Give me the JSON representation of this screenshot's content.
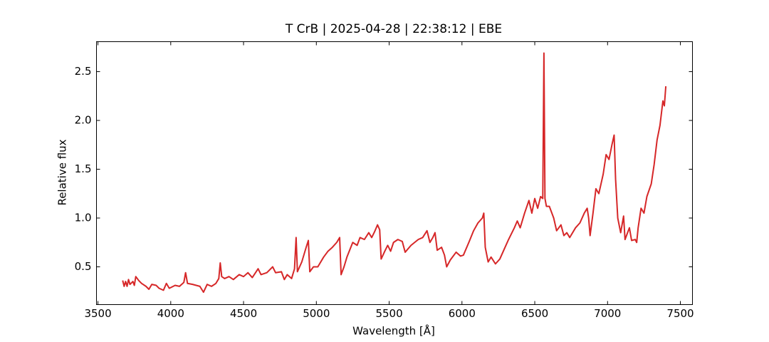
{
  "chart_data": {
    "type": "line",
    "title": "T CrB | 2025-04-28 | 22:38:12 | EBE",
    "x_label": "Wavelength [Å]",
    "y_label": "Relative flux",
    "xlim": [
      3490,
      7583
    ],
    "ylim": [
      0.113,
      2.807
    ],
    "xticks": [
      3500,
      4000,
      4500,
      5000,
      5500,
      6000,
      6500,
      7000,
      7500
    ],
    "yticks": [
      0.5,
      {
        "value": 1,
        "label": "1.0"
      },
      1.5,
      {
        "value": 2,
        "label": "2.0"
      },
      2.5
    ],
    "series": [
      {
        "color": "#d62728",
        "x": [
          3670,
          3680,
          3690,
          3700,
          3710,
          3720,
          3740,
          3750,
          3760,
          3780,
          3800,
          3830,
          3850,
          3870,
          3900,
          3920,
          3950,
          3970,
          3990,
          4030,
          4060,
          4090,
          4102,
          4115,
          4150,
          4200,
          4225,
          4250,
          4280,
          4310,
          4330,
          4340,
          4350,
          4370,
          4400,
          4430,
          4470,
          4500,
          4530,
          4560,
          4600,
          4620,
          4660,
          4700,
          4720,
          4760,
          4780,
          4800,
          4830,
          4850,
          4861,
          4870,
          4900,
          4930,
          4945,
          4955,
          4980,
          5010,
          5050,
          5080,
          5110,
          5140,
          5160,
          5170,
          5190,
          5210,
          5250,
          5280,
          5300,
          5330,
          5360,
          5380,
          5400,
          5420,
          5435,
          5445,
          5470,
          5490,
          5510,
          5530,
          5560,
          5590,
          5610,
          5650,
          5700,
          5730,
          5760,
          5780,
          5800,
          5815,
          5830,
          5860,
          5880,
          5895,
          5920,
          5960,
          5990,
          6010,
          6050,
          6080,
          6110,
          6140,
          6150,
          6160,
          6180,
          6200,
          6230,
          6260,
          6290,
          6320,
          6360,
          6380,
          6400,
          6430,
          6460,
          6480,
          6500,
          6520,
          6540,
          6555,
          6563,
          6570,
          6580,
          6600,
          6630,
          6650,
          6680,
          6700,
          6720,
          6740,
          6780,
          6810,
          6840,
          6860,
          6870,
          6880,
          6900,
          6920,
          6940,
          6970,
          6990,
          7010,
          7030,
          7045,
          7055,
          7070,
          7090,
          7110,
          7120,
          7150,
          7165,
          7190,
          7200,
          7210,
          7230,
          7250,
          7270,
          7300,
          7320,
          7340,
          7360,
          7380,
          7390,
          7400
        ],
        "values": [
          0.36,
          0.3,
          0.35,
          0.3,
          0.37,
          0.32,
          0.35,
          0.31,
          0.4,
          0.36,
          0.33,
          0.3,
          0.27,
          0.32,
          0.31,
          0.28,
          0.26,
          0.33,
          0.28,
          0.31,
          0.3,
          0.34,
          0.44,
          0.33,
          0.32,
          0.3,
          0.24,
          0.32,
          0.3,
          0.33,
          0.38,
          0.54,
          0.4,
          0.38,
          0.4,
          0.37,
          0.42,
          0.4,
          0.44,
          0.39,
          0.48,
          0.42,
          0.44,
          0.5,
          0.44,
          0.45,
          0.37,
          0.42,
          0.38,
          0.48,
          0.8,
          0.45,
          0.55,
          0.7,
          0.77,
          0.45,
          0.5,
          0.5,
          0.6,
          0.66,
          0.7,
          0.75,
          0.8,
          0.42,
          0.5,
          0.6,
          0.75,
          0.72,
          0.8,
          0.78,
          0.85,
          0.8,
          0.86,
          0.93,
          0.88,
          0.58,
          0.66,
          0.72,
          0.66,
          0.75,
          0.78,
          0.76,
          0.65,
          0.72,
          0.78,
          0.8,
          0.87,
          0.75,
          0.8,
          0.85,
          0.67,
          0.7,
          0.62,
          0.5,
          0.57,
          0.65,
          0.61,
          0.62,
          0.76,
          0.87,
          0.95,
          1.0,
          1.05,
          0.7,
          0.55,
          0.6,
          0.53,
          0.58,
          0.68,
          0.78,
          0.9,
          0.97,
          0.9,
          1.05,
          1.18,
          1.05,
          1.2,
          1.1,
          1.22,
          1.2,
          2.69,
          1.2,
          1.12,
          1.12,
          1.0,
          0.87,
          0.93,
          0.82,
          0.85,
          0.8,
          0.9,
          0.95,
          1.05,
          1.1,
          1.0,
          0.82,
          1.05,
          1.3,
          1.25,
          1.45,
          1.65,
          1.6,
          1.75,
          1.85,
          1.4,
          1.0,
          0.85,
          1.02,
          0.78,
          0.9,
          0.77,
          0.78,
          0.75,
          0.9,
          1.1,
          1.05,
          1.22,
          1.35,
          1.55,
          1.8,
          1.95,
          2.2,
          2.15,
          2.35
        ]
      }
    ]
  }
}
